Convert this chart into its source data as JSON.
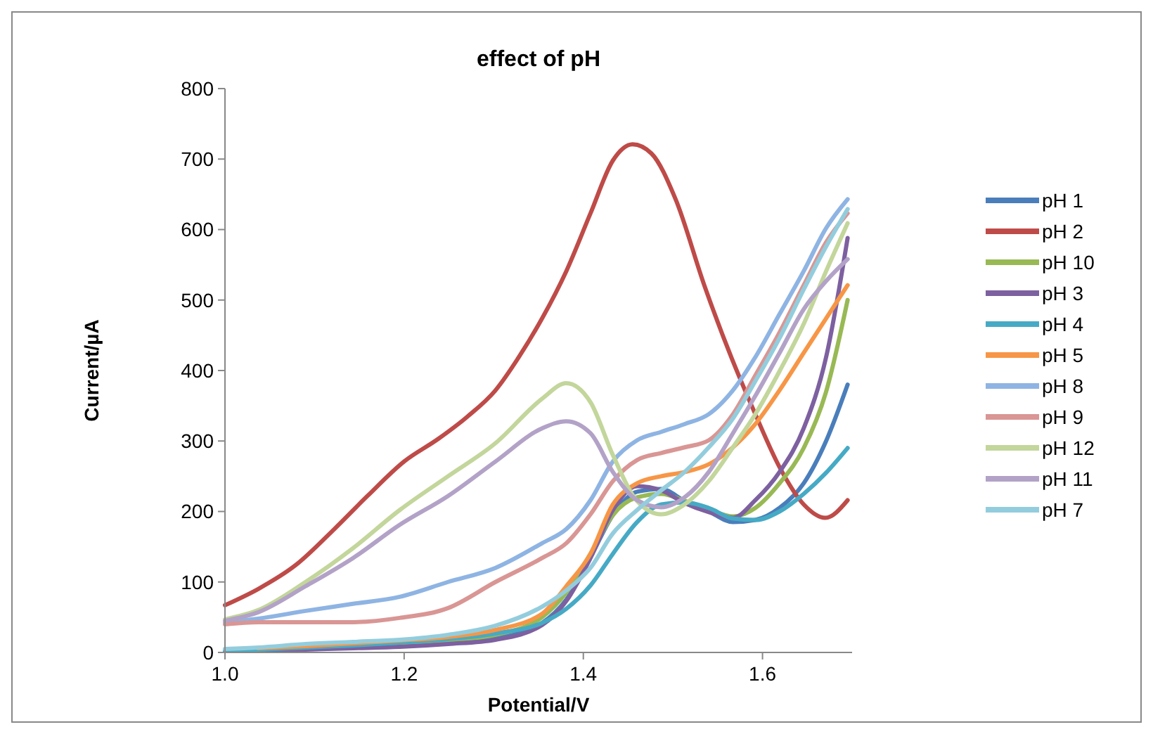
{
  "chart_data": {
    "type": "line",
    "title": "effect of pH",
    "xlabel": "Potential/V",
    "ylabel": "Current/µA",
    "x": [
      1.0,
      1.037,
      1.09,
      1.143,
      1.195,
      1.249,
      1.302,
      1.354,
      1.381,
      1.408,
      1.433,
      1.46,
      1.487,
      1.513,
      1.54,
      1.567,
      1.592,
      1.619,
      1.646,
      1.671,
      1.695
    ],
    "xlim": [
      1.0,
      1.7
    ],
    "xticks": [
      {
        "value": 1.0,
        "label": "1.0"
      },
      {
        "value": 1.2,
        "label": "1.2"
      },
      {
        "value": 1.4,
        "label": "1.4"
      },
      {
        "value": 1.6,
        "label": "1.6"
      }
    ],
    "ylim": [
      0,
      800
    ],
    "yticks": [
      0,
      100,
      200,
      300,
      400,
      500,
      600,
      700,
      800
    ],
    "grid": false,
    "legend": "right",
    "marker": "none",
    "line_style": "solid",
    "series": [
      {
        "name": "pH 1",
        "color": "#4a7ebb",
        "values": [
          3,
          3,
          5,
          7,
          9,
          13,
          20,
          42,
          75,
          135,
          195,
          228,
          232,
          215,
          200,
          185,
          188,
          205,
          240,
          300,
          380
        ]
      },
      {
        "name": "pH 2",
        "color": "#be4b48",
        "x": [
          1.0,
          1.037,
          1.079,
          1.122,
          1.159,
          1.2,
          1.238,
          1.27,
          1.302,
          1.328,
          1.354,
          1.381,
          1.408,
          1.433,
          1.455,
          1.476,
          1.503,
          1.535,
          1.567,
          1.592,
          1.619,
          1.646,
          1.67,
          1.695
        ],
        "values": [
          67,
          90,
          124,
          175,
          222,
          271,
          303,
          334,
          372,
          419,
          474,
          541,
          623,
          698,
          721,
          708,
          643,
          521,
          413,
          338,
          263,
          210,
          191,
          216
        ]
      },
      {
        "name": "pH 10",
        "color": "#98b954",
        "values": [
          4,
          4,
          6,
          9,
          12,
          17,
          25,
          50,
          85,
          140,
          195,
          220,
          225,
          215,
          203,
          193,
          205,
          240,
          290,
          370,
          500
        ]
      },
      {
        "name": "pH 3",
        "color": "#7d60a0",
        "values": [
          2,
          2,
          4,
          6,
          8,
          12,
          18,
          39,
          73,
          134,
          202,
          236,
          230,
          212,
          199,
          191,
          216,
          256,
          318,
          419,
          588
        ]
      },
      {
        "name": "pH 4",
        "color": "#46aac5",
        "values": [
          3,
          4,
          7,
          10,
          14,
          19,
          27,
          42,
          62,
          95,
          140,
          185,
          210,
          213,
          205,
          190,
          188,
          200,
          225,
          255,
          290
        ]
      },
      {
        "name": "pH 5",
        "color": "#f79646",
        "values": [
          null,
          6,
          9,
          13,
          17,
          22,
          32,
          55,
          94,
          140,
          210,
          240,
          250,
          256,
          267,
          291,
          324,
          372,
          425,
          474,
          521
        ]
      },
      {
        "name": "pH 8",
        "color": "#8eb4e3",
        "values": [
          43,
          48,
          59,
          69,
          79,
          100,
          120,
          155,
          175,
          216,
          271,
          301,
          313,
          324,
          338,
          372,
          419,
          480,
          541,
          602,
          643
        ]
      },
      {
        "name": "pH 9",
        "color": "#d99694",
        "values": [
          40,
          43,
          43,
          43,
          49,
          63,
          100,
          134,
          155,
          196,
          243,
          273,
          283,
          291,
          301,
          338,
          393,
          454,
          521,
          582,
          623
        ]
      },
      {
        "name": "pH 12",
        "color": "#c3d69b",
        "values": [
          47,
          60,
          100,
          148,
          202,
          250,
          297,
          360,
          382,
          355,
          280,
          215,
          196,
          210,
          243,
          291,
          338,
          399,
          466,
          541,
          609
        ]
      },
      {
        "name": "pH 11",
        "color": "#b3a2c7",
        "values": [
          45,
          57,
          94,
          134,
          181,
          222,
          271,
          318,
          328,
          311,
          256,
          216,
          206,
          220,
          256,
          311,
          364,
          425,
          487,
          527,
          558
        ]
      },
      {
        "name": "pH 7",
        "color": "#93cddd",
        "values": [
          5,
          7,
          12,
          15,
          18,
          25,
          38,
          65,
          88,
          120,
          169,
          202,
          230,
          256,
          291,
          332,
          385,
          446,
          515,
          576,
          629
        ]
      }
    ]
  }
}
